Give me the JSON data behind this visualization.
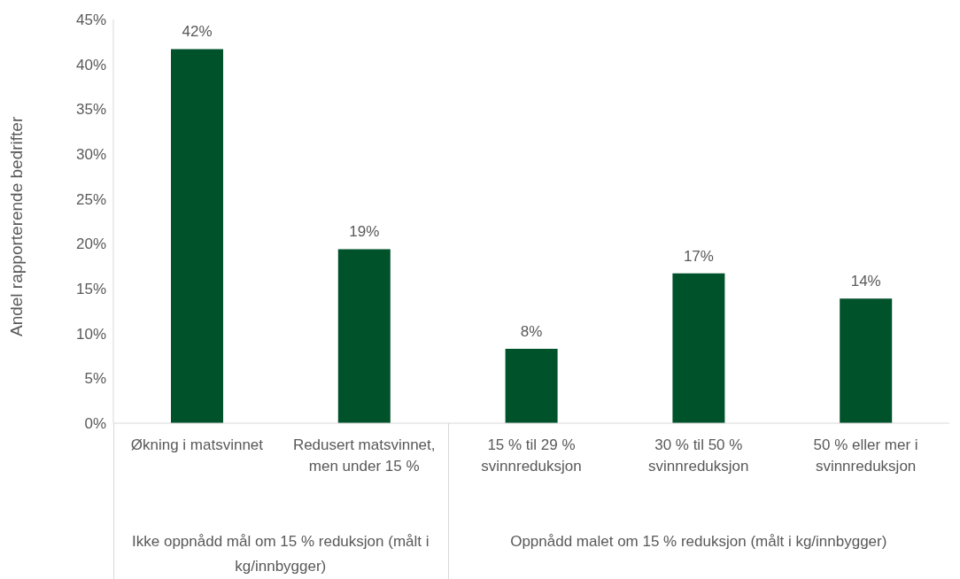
{
  "chart_data": {
    "type": "bar",
    "ylabel": "Andel rapporterende bedrifter",
    "categories": [
      "Økning i matsvinnet",
      "Redusert matsvinnet, men under 15 %",
      "15 % til 29 % svinnreduksjon",
      "30 % til 50 % svinnreduksjon",
      "50 % eller mer i svinnreduksjon"
    ],
    "values": [
      41.7,
      19.4,
      8.3,
      16.7,
      13.9
    ],
    "value_labels": [
      "42%",
      "19%",
      "8%",
      "17%",
      "14%"
    ],
    "color": "#00522b",
    "ylim": [
      0,
      45
    ],
    "yticks": [
      {
        "value": 0,
        "label": "0%"
      },
      {
        "value": 5,
        "label": "5%"
      },
      {
        "value": 10,
        "label": "10%"
      },
      {
        "value": 15,
        "label": "15%"
      },
      {
        "value": 20,
        "label": "20%"
      },
      {
        "value": 25,
        "label": "25%"
      },
      {
        "value": 30,
        "label": "30%"
      },
      {
        "value": 35,
        "label": "35%"
      },
      {
        "value": 40,
        "label": "40%"
      },
      {
        "value": 45,
        "label": "45%"
      }
    ],
    "annotations": [
      "Ikke oppnådd mål om 15 % reduksjon (målt i kg/innbygger)",
      "Oppnådd malet om 15 % reduksjon (målt i kg/innbygger)"
    ],
    "grid": false,
    "legend": false
  }
}
